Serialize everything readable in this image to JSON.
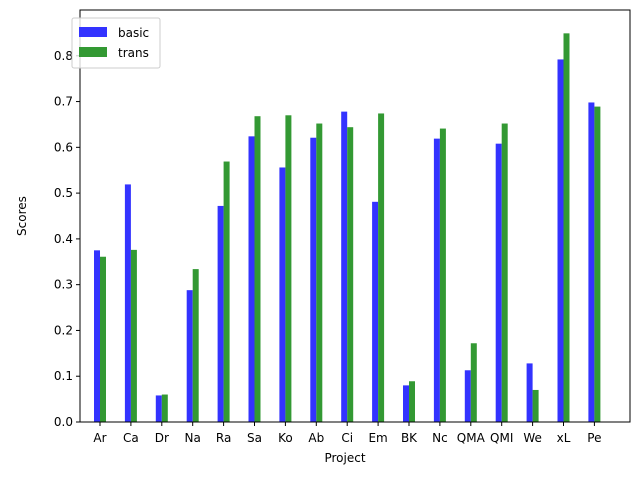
{
  "chart_data": {
    "type": "bar",
    "title": "",
    "xlabel": "Project",
    "ylabel": "Scores",
    "ylim": [
      0,
      0.9
    ],
    "yticks": [
      "0.0",
      "0.1",
      "0.2",
      "0.3",
      "0.4",
      "0.5",
      "0.6",
      "0.7",
      "0.8"
    ],
    "categories": [
      "Ar",
      "Ca",
      "Dr",
      "Na",
      "Ra",
      "Sa",
      "Ko",
      "Ab",
      "Ci",
      "Em",
      "BK",
      "Nc",
      "QMA",
      "QMI",
      "We",
      "xL",
      "Pe"
    ],
    "series": [
      {
        "name": "basic",
        "color": "#3333ff",
        "values": [
          0.375,
          0.519,
          0.058,
          0.288,
          0.472,
          0.624,
          0.556,
          0.621,
          0.678,
          0.481,
          0.08,
          0.619,
          0.113,
          0.608,
          0.128,
          0.792,
          0.698
        ]
      },
      {
        "name": "trans",
        "color": "#339933",
        "values": [
          0.361,
          0.376,
          0.06,
          0.334,
          0.569,
          0.668,
          0.67,
          0.652,
          0.644,
          0.674,
          0.089,
          0.641,
          0.172,
          0.652,
          0.07,
          0.849,
          0.689
        ]
      }
    ],
    "legend_position": "upper-left",
    "grid": false
  }
}
